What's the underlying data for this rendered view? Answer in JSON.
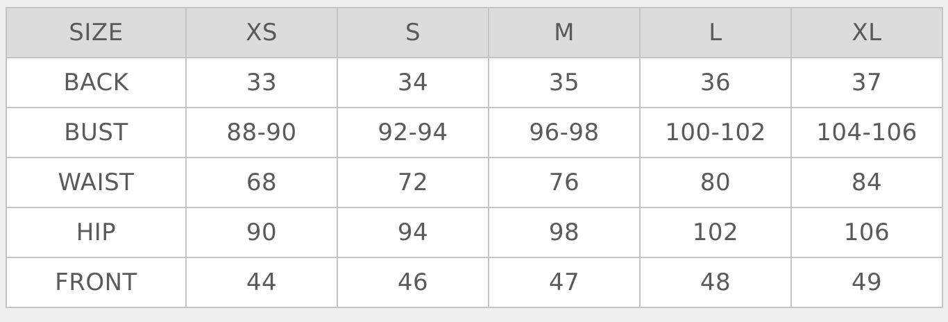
{
  "table": {
    "header": [
      "SIZE",
      "XS",
      "S",
      "M",
      "L",
      "XL"
    ],
    "rows": [
      [
        "BACK",
        33,
        34,
        35,
        36,
        37
      ],
      [
        "BUST",
        "88-90",
        "92-94",
        "96-98",
        "100-102",
        "104-106"
      ],
      [
        "WAIST",
        68,
        72,
        76,
        80,
        84
      ],
      [
        "HIP",
        90,
        94,
        98,
        102,
        106
      ],
      [
        "FRONT",
        44,
        46,
        47,
        48,
        49
      ]
    ]
  }
}
